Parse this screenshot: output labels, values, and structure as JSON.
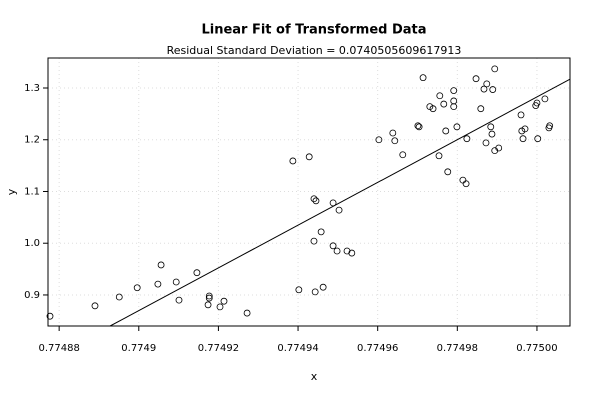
{
  "chart_data": {
    "type": "scatter",
    "title": "Linear Fit of Transformed Data",
    "subtitle": "Residual Standard Deviation =  0.0740505609617913",
    "xlabel": "x",
    "ylabel": "y",
    "xlim": [
      0.7748772,
      0.7750083
    ],
    "ylim": [
      0.84,
      1.358
    ],
    "xticks": [
      0.77488,
      0.7749,
      0.77492,
      0.77494,
      0.77496,
      0.77498,
      {
        "value": 0.775,
        "label": "0.77500"
      }
    ],
    "yticks": [
      0.9,
      {
        "value": 1.0,
        "label": "1.0"
      },
      1.1,
      1.2,
      1.3
    ],
    "xtick_labels_fixed": true,
    "grid": true,
    "series": [
      {
        "color": "#000000",
        "x": [
          0.7748777,
          0.774889,
          0.7748951,
          0.7748996,
          0.7749048,
          0.7749056,
          0.7749094,
          0.7749101,
          0.7749146,
          0.7749174,
          0.7749177,
          0.7749177,
          0.7749204,
          0.7749214,
          0.7749272,
          0.7749387,
          0.7749402,
          0.7749428,
          0.774944,
          0.7749445,
          0.774944,
          0.7749443,
          0.7749458,
          0.7749463,
          0.7749488,
          0.7749488,
          0.7749498,
          0.7749503,
          0.7749523,
          0.7749535,
          0.7749603,
          0.7749638,
          0.7749643,
          0.7749663,
          0.7749701,
          0.7749704,
          0.7749714,
          0.7749731,
          0.7749739,
          0.7749754,
          0.7749756,
          0.7749766,
          0.7749771,
          0.7749776,
          0.7749791,
          0.7749791,
          0.7749791,
          0.7749799,
          0.7749814,
          0.7749822,
          0.7749824,
          0.7749847,
          0.7749859,
          0.7749867,
          0.7749874,
          0.7749872,
          0.7749884,
          0.7749887,
          0.7749889,
          0.7749894,
          0.7749894,
          0.7749904,
          0.774996,
          0.7749962,
          0.7749965,
          0.774997,
          0.7749997,
          0.775,
          0.7750002,
          0.775002,
          0.775003,
          0.7750032
        ],
        "values": [
          0.859,
          0.879,
          0.896,
          0.914,
          0.921,
          0.958,
          0.925,
          0.89,
          0.943,
          0.881,
          0.894,
          0.898,
          0.877,
          0.888,
          0.865,
          1.159,
          0.91,
          1.167,
          1.086,
          1.082,
          1.004,
          0.906,
          1.022,
          0.915,
          1.078,
          0.995,
          0.985,
          1.064,
          0.985,
          0.981,
          1.2,
          1.213,
          1.198,
          1.171,
          1.227,
          1.225,
          1.32,
          1.264,
          1.26,
          1.169,
          1.285,
          1.269,
          1.217,
          1.138,
          1.295,
          1.275,
          1.264,
          1.225,
          1.122,
          1.115,
          1.202,
          1.318,
          1.26,
          1.298,
          1.308,
          1.194,
          1.225,
          1.211,
          1.297,
          1.337,
          1.179,
          1.184,
          1.248,
          1.217,
          1.202,
          1.221,
          1.266,
          1.271,
          1.202,
          1.279,
          1.223,
          1.227
        ]
      }
    ],
    "fit": {
      "color": "#000000",
      "x": [
        0.7748928,
        0.7750083
      ],
      "values": [
        0.84,
        1.317
      ]
    }
  }
}
